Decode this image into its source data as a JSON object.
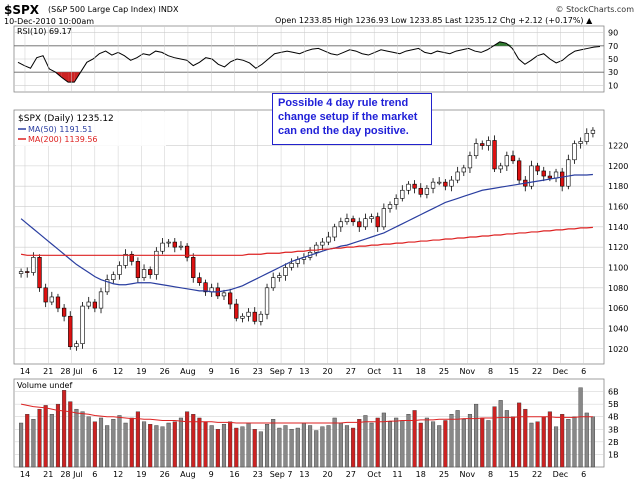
{
  "header": {
    "symbol": "$SPX",
    "name": "(S&P 500 Large Cap Index) INDX",
    "date": "10-Dec-2010 10:00am",
    "copyright": "© StockCharts.com",
    "quote": "Open 1233.85  High 1236.93  Low 1233.85  Last 1235.12  Chg +2.12 (+0.17%) ▲"
  },
  "annotation": {
    "text": "Possible 4 day rule trend change setup if the market can end the day positive."
  },
  "colors": {
    "up": "#ffffff",
    "down": "#dd1111",
    "ma50": "#2a3ea0",
    "ma200": "#dd2222",
    "rsi": "#000000",
    "rsi_fill": "#2f7a2f",
    "grid": "#cccccc",
    "panel_bg": "#ffffff",
    "volume_up": "#888888",
    "volume_down": "#cc2222",
    "annotation": "#2020d8"
  },
  "chart_data": [
    {
      "type": "line",
      "panel": "rsi",
      "title": "RSI(10) 69.17",
      "yticks": [
        10,
        30,
        50,
        70,
        90
      ],
      "ylim": [
        0,
        100
      ],
      "bands": [
        30,
        70
      ],
      "series": [
        {
          "name": "RSI(10)",
          "values": [
            45,
            40,
            36,
            52,
            55,
            35,
            30,
            22,
            15,
            15,
            30,
            45,
            50,
            58,
            62,
            56,
            60,
            55,
            48,
            52,
            58,
            56,
            62,
            60,
            55,
            52,
            50,
            48,
            40,
            45,
            52,
            50,
            42,
            38,
            46,
            50,
            48,
            44,
            36,
            42,
            50,
            58,
            60,
            62,
            60,
            58,
            62,
            65,
            66,
            62,
            58,
            56,
            60,
            64,
            62,
            58,
            56,
            60,
            64,
            62,
            60,
            58,
            62,
            64,
            66,
            60,
            58,
            62,
            60,
            58,
            62,
            64,
            66,
            62,
            60,
            64,
            70,
            76,
            74,
            66,
            50,
            42,
            48,
            55,
            58,
            50,
            44,
            48,
            56,
            62,
            64,
            66,
            68,
            69
          ]
        }
      ]
    },
    {
      "type": "candlestick",
      "panel": "price",
      "title": "$SPX (Daily) 1235.12",
      "ylim": [
        1005,
        1255
      ],
      "yticks": [
        1020,
        1040,
        1060,
        1080,
        1100,
        1120,
        1140,
        1160,
        1180,
        1200,
        1220
      ],
      "xticks": [
        "14",
        "21",
        "28 Jul",
        "6",
        "12",
        "19",
        "26",
        "Aug",
        "9",
        "16",
        "23",
        "Sep 7",
        "13",
        "20",
        "27",
        "Oct",
        "11",
        "18",
        "25",
        "Nov",
        "8",
        "15",
        "22",
        "Dec",
        "6"
      ],
      "series": [
        {
          "name": "MA(50) 1191.51",
          "values": [
            1148,
            1143,
            1138,
            1133,
            1128,
            1123,
            1118,
            1113,
            1108,
            1103,
            1099,
            1095,
            1091,
            1088,
            1086,
            1084,
            1083,
            1083,
            1084,
            1085,
            1085,
            1085,
            1084,
            1083,
            1082,
            1081,
            1080,
            1079,
            1078,
            1077,
            1077,
            1076,
            1076,
            1077,
            1078,
            1080,
            1082,
            1085,
            1088,
            1091,
            1094,
            1097,
            1100,
            1103,
            1106,
            1108,
            1110,
            1112,
            1114,
            1116,
            1118,
            1119,
            1121,
            1122,
            1124,
            1126,
            1128,
            1130,
            1132,
            1134,
            1137,
            1140,
            1143,
            1146,
            1149,
            1152,
            1155,
            1158,
            1161,
            1164,
            1166,
            1168,
            1170,
            1172,
            1174,
            1176,
            1177,
            1178,
            1179,
            1180,
            1181,
            1182,
            1183,
            1184,
            1185,
            1186,
            1187,
            1188,
            1189,
            1190,
            1191,
            1191,
            1191,
            1191.5
          ]
        },
        {
          "name": "MA(200) 1139.56",
          "values": [
            1113,
            1112,
            1112,
            1112,
            1112,
            1112,
            1112,
            1112,
            1112,
            1112,
            1112,
            1112,
            1112,
            1112,
            1112,
            1112,
            1112,
            1112,
            1112,
            1112,
            1112,
            1112,
            1112,
            1112,
            1112,
            1112,
            1112,
            1112,
            1112,
            1112,
            1112,
            1112,
            1112,
            1112,
            1112,
            1112,
            1112,
            1113,
            1113,
            1113,
            1114,
            1114,
            1114,
            1115,
            1115,
            1116,
            1116,
            1117,
            1117,
            1118,
            1118,
            1119,
            1119,
            1120,
            1120,
            1121,
            1121,
            1122,
            1122,
            1123,
            1123,
            1124,
            1124,
            1125,
            1125,
            1126,
            1126,
            1127,
            1127,
            1128,
            1128,
            1129,
            1129,
            1130,
            1130,
            1131,
            1131,
            1132,
            1132,
            1133,
            1133,
            1134,
            1134,
            1135,
            1135,
            1136,
            1136,
            1137,
            1137,
            1138,
            1138,
            1139,
            1139,
            1139.5
          ]
        }
      ],
      "close": [
        1096,
        1095,
        1110,
        1080,
        1066,
        1071,
        1060,
        1052,
        1022,
        1025,
        1062,
        1066,
        1060,
        1076,
        1088,
        1093,
        1102,
        1113,
        1106,
        1090,
        1098,
        1093,
        1116,
        1124,
        1125,
        1120,
        1121,
        1110,
        1090,
        1085,
        1076,
        1080,
        1072,
        1075,
        1064,
        1050,
        1052,
        1056,
        1047,
        1054,
        1080,
        1090,
        1092,
        1100,
        1104,
        1108,
        1110,
        1115,
        1122,
        1125,
        1130,
        1140,
        1145,
        1148,
        1145,
        1140,
        1148,
        1150,
        1140,
        1158,
        1162,
        1168,
        1176,
        1182,
        1178,
        1172,
        1178,
        1184,
        1184,
        1180,
        1186,
        1194,
        1198,
        1210,
        1222,
        1220,
        1225,
        1197,
        1200,
        1210,
        1205,
        1186,
        1180,
        1200,
        1195,
        1190,
        1188,
        1194,
        1180,
        1206,
        1222,
        1224,
        1232,
        1235.12
      ]
    },
    {
      "type": "bar",
      "panel": "volume",
      "title": "Volume undef",
      "yticks": [
        "1B",
        "2B",
        "3B",
        "4B",
        "5B",
        "6B"
      ],
      "ylim": [
        0,
        7
      ],
      "values": [
        3.5,
        4.2,
        3.8,
        4.6,
        4.9,
        4.2,
        5.0,
        6.1,
        5.2,
        4.6,
        4.4,
        4.0,
        3.6,
        3.9,
        3.3,
        3.8,
        4.1,
        3.5,
        3.9,
        4.4,
        3.6,
        3.4,
        3.3,
        3.2,
        3.5,
        3.6,
        3.9,
        4.4,
        4.2,
        3.9,
        3.6,
        3.3,
        3.0,
        3.4,
        3.6,
        3.1,
        3.2,
        3.5,
        3.0,
        2.8,
        3.4,
        3.8,
        3.1,
        3.3,
        3.0,
        3.1,
        3.5,
        3.3,
        2.9,
        3.2,
        3.3,
        3.9,
        3.5,
        3.3,
        3.1,
        3.8,
        4.1,
        3.5,
        3.9,
        4.3,
        3.6,
        3.9,
        3.7,
        4.2,
        4.5,
        3.5,
        3.9,
        3.6,
        3.3,
        3.7,
        4.2,
        4.5,
        3.8,
        4.2,
        5.0,
        3.9,
        3.7,
        4.8,
        5.3,
        4.5,
        4.0,
        5.1,
        4.6,
        3.5,
        3.6,
        4.0,
        4.4,
        3.2,
        4.2,
        3.8,
        4.0,
        6.3,
        4.3,
        4.0
      ],
      "moving_average": [
        5.0,
        4.9,
        4.8,
        4.75,
        4.7,
        4.6,
        4.5,
        4.45,
        4.4,
        4.3,
        4.25,
        4.2,
        4.1,
        4.05,
        4.0,
        4.0,
        3.95,
        3.9,
        3.85,
        3.85,
        3.8,
        3.8,
        3.75,
        3.7,
        3.7,
        3.7,
        3.65,
        3.6,
        3.6,
        3.6,
        3.6,
        3.6,
        3.55,
        3.55,
        3.55,
        3.5,
        3.5,
        3.5,
        3.5,
        3.5,
        3.5,
        3.5,
        3.5,
        3.5,
        3.5,
        3.5,
        3.5,
        3.5,
        3.5,
        3.5,
        3.5,
        3.5,
        3.5,
        3.55,
        3.55,
        3.55,
        3.6,
        3.6,
        3.6,
        3.6,
        3.65,
        3.65,
        3.7,
        3.7,
        3.7,
        3.75,
        3.75,
        3.75,
        3.8,
        3.8,
        3.8,
        3.8,
        3.85,
        3.85,
        3.85,
        3.9,
        3.9,
        3.9,
        3.95,
        3.95,
        3.95,
        4.0,
        4.0,
        4.0,
        4.0,
        4.0,
        4.0,
        3.95,
        3.95,
        3.95,
        3.95,
        4.0,
        4.0,
        4.0
      ]
    }
  ]
}
